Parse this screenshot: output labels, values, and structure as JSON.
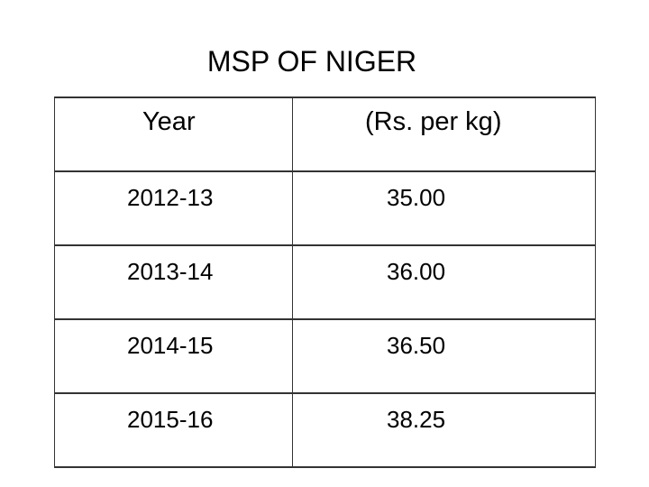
{
  "title": "MSP OF NIGER",
  "table": {
    "headers": [
      "Year",
      "(Rs. per kg)"
    ],
    "rows": [
      [
        "2012-13",
        "35.00"
      ],
      [
        "2013-14",
        "36.00"
      ],
      [
        "2014-15",
        "36.50"
      ],
      [
        "2015-16",
        "38.25"
      ]
    ]
  }
}
